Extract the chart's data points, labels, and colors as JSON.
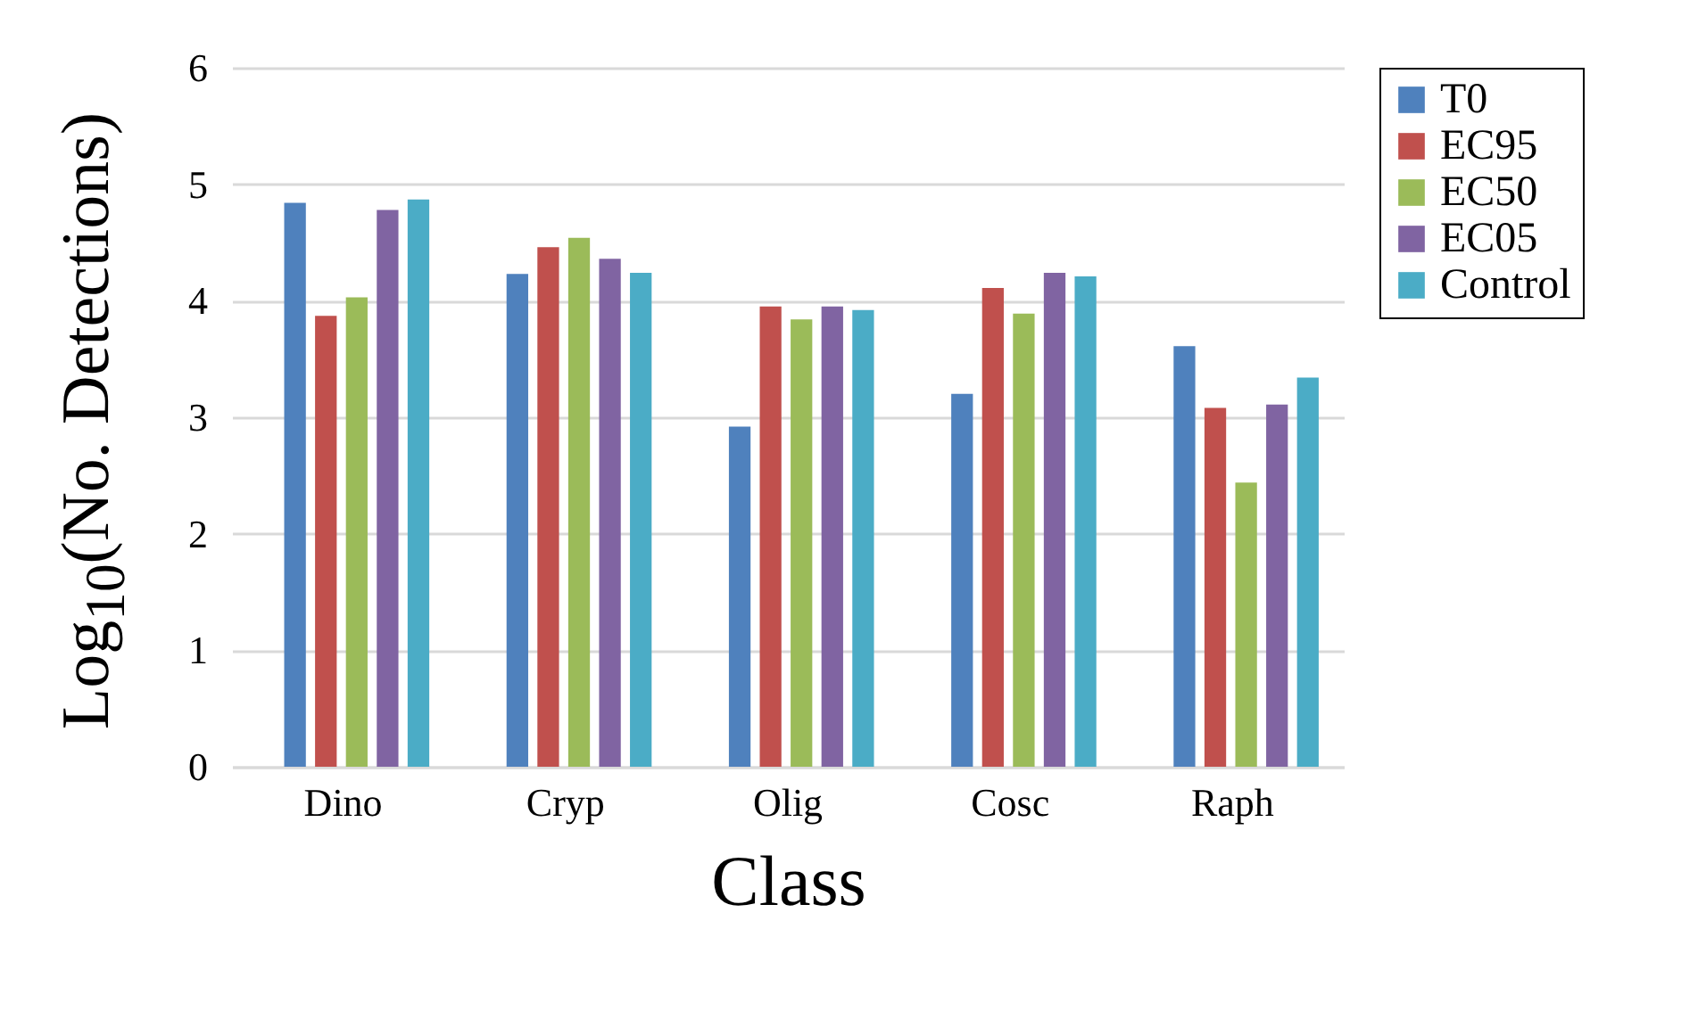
{
  "chart_data": {
    "type": "bar",
    "xlabel": "Class",
    "ylabel": "Log$_{10}$(No. Detections)",
    "categories": [
      "Dino",
      "Cryp",
      "Olig",
      "Cosc",
      "Raph"
    ],
    "series": [
      {
        "name": "T0",
        "color": "#4f81bd",
        "values": [
          4.84,
          4.23,
          2.92,
          3.2,
          3.61
        ]
      },
      {
        "name": "EC95",
        "color": "#c0504d",
        "values": [
          3.87,
          4.46,
          3.95,
          4.11,
          3.08
        ]
      },
      {
        "name": "EC50",
        "color": "#9bbb59",
        "values": [
          4.03,
          4.54,
          3.84,
          3.89,
          2.44
        ]
      },
      {
        "name": "EC05",
        "color": "#8064a2",
        "values": [
          4.78,
          4.36,
          3.95,
          4.24,
          3.11
        ]
      },
      {
        "name": "Control",
        "color": "#4bacc6",
        "values": [
          4.87,
          4.24,
          3.92,
          4.21,
          3.34
        ]
      }
    ],
    "ylim": [
      0,
      6
    ],
    "yticks": [
      0,
      1,
      2,
      3,
      4,
      5,
      6
    ],
    "grid": "y",
    "legend": "right"
  }
}
